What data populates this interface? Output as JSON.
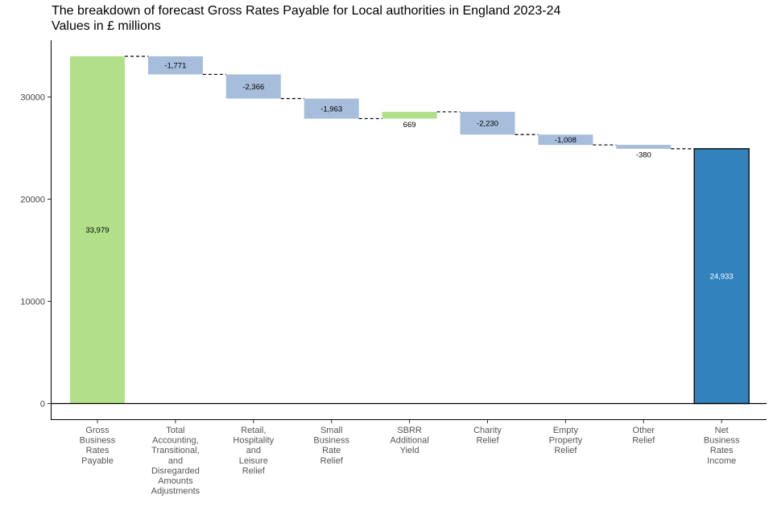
{
  "title": "The breakdown of forecast Gross Rates Payable for Local authorities in England 2023-24",
  "subtitle": "Values in £ millions",
  "colors": {
    "increase": "#b2df8a",
    "decrease": "#a6bddb",
    "total_start": "#b2df8a",
    "total_end": "#3182bd"
  },
  "chart_data": {
    "type": "bar",
    "subtype": "waterfall",
    "title": "The breakdown of forecast Gross Rates Payable for Local authorities in England 2023-24",
    "subtitle": "Values in £ millions",
    "xlabel": "",
    "ylabel": "",
    "ylim": [
      -1600,
      35400
    ],
    "yticks": [
      0,
      10000,
      20000,
      30000
    ],
    "categories": [
      [
        "Gross",
        "Business",
        "Rates",
        "Payable"
      ],
      [
        "Total",
        "Accounting,",
        "Transitional,",
        "and",
        "Disregarded",
        "Amounts",
        "Adjustments"
      ],
      [
        "Retail,",
        "Hospitality",
        "and",
        "Leisure",
        "Relief"
      ],
      [
        "Small",
        "Business",
        "Rate",
        "Relief"
      ],
      [
        "SBRR",
        "Additional",
        "Yield"
      ],
      [
        "Charity",
        "Relief"
      ],
      [
        "Empty",
        "Property",
        "Relief"
      ],
      [
        "Other",
        "Relief"
      ],
      [
        "Net",
        "Business",
        "Rates",
        "Income"
      ]
    ],
    "values": [
      33979,
      -1771,
      -2366,
      -1963,
      669,
      -2230,
      -1008,
      -380,
      24933
    ],
    "labels": [
      "33,979",
      "-1,771",
      "-2,366",
      "-1,963",
      "669",
      "-2,230",
      "-1,008",
      "-380",
      "24,933"
    ],
    "kinds": [
      "total_start",
      "decrease",
      "decrease",
      "decrease",
      "increase",
      "decrease",
      "decrease",
      "decrease",
      "total_end"
    ],
    "connectors": "dashed",
    "legend": "none",
    "grid": false
  }
}
